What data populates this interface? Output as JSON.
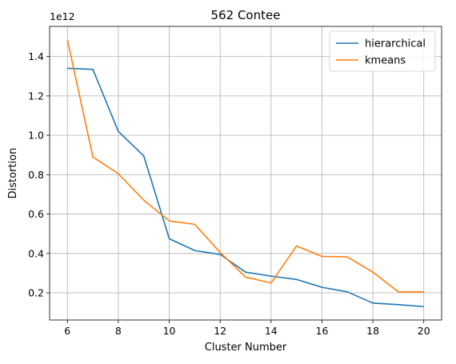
{
  "chart_data": {
    "type": "line",
    "title": "562 Contee",
    "xlabel": "Cluster Number",
    "ylabel": "Distortion",
    "y_offset_label": "1e12",
    "x": [
      6,
      7,
      8,
      9,
      10,
      11,
      12,
      13,
      14,
      15,
      16,
      17,
      18,
      19,
      20
    ],
    "series": [
      {
        "name": "hierarchical",
        "color": "#1f77b4",
        "values": [
          1.34,
          1.335,
          1.02,
          0.895,
          0.475,
          0.415,
          0.395,
          0.305,
          0.285,
          0.268,
          0.228,
          0.205,
          0.148,
          0.14,
          0.13
        ]
      },
      {
        "name": "kmeans",
        "color": "#ff7f0e",
        "values": [
          1.485,
          0.89,
          0.805,
          0.67,
          0.565,
          0.548,
          0.405,
          0.28,
          0.25,
          0.438,
          0.385,
          0.382,
          0.305,
          0.205,
          0.205
        ]
      }
    ],
    "x_ticks": [
      6,
      8,
      10,
      12,
      14,
      16,
      18,
      20
    ],
    "y_ticks": [
      0.2,
      0.4,
      0.6,
      0.8,
      1.0,
      1.2,
      1.4
    ],
    "y_tick_labels": [
      "0.2",
      "0.4",
      "0.6",
      "0.8",
      "1.0",
      "1.2",
      "1.4"
    ],
    "xlim": [
      5.3,
      20.7
    ],
    "ylim": [
      0.062,
      1.553
    ],
    "grid": true,
    "legend_position": "top-right"
  }
}
